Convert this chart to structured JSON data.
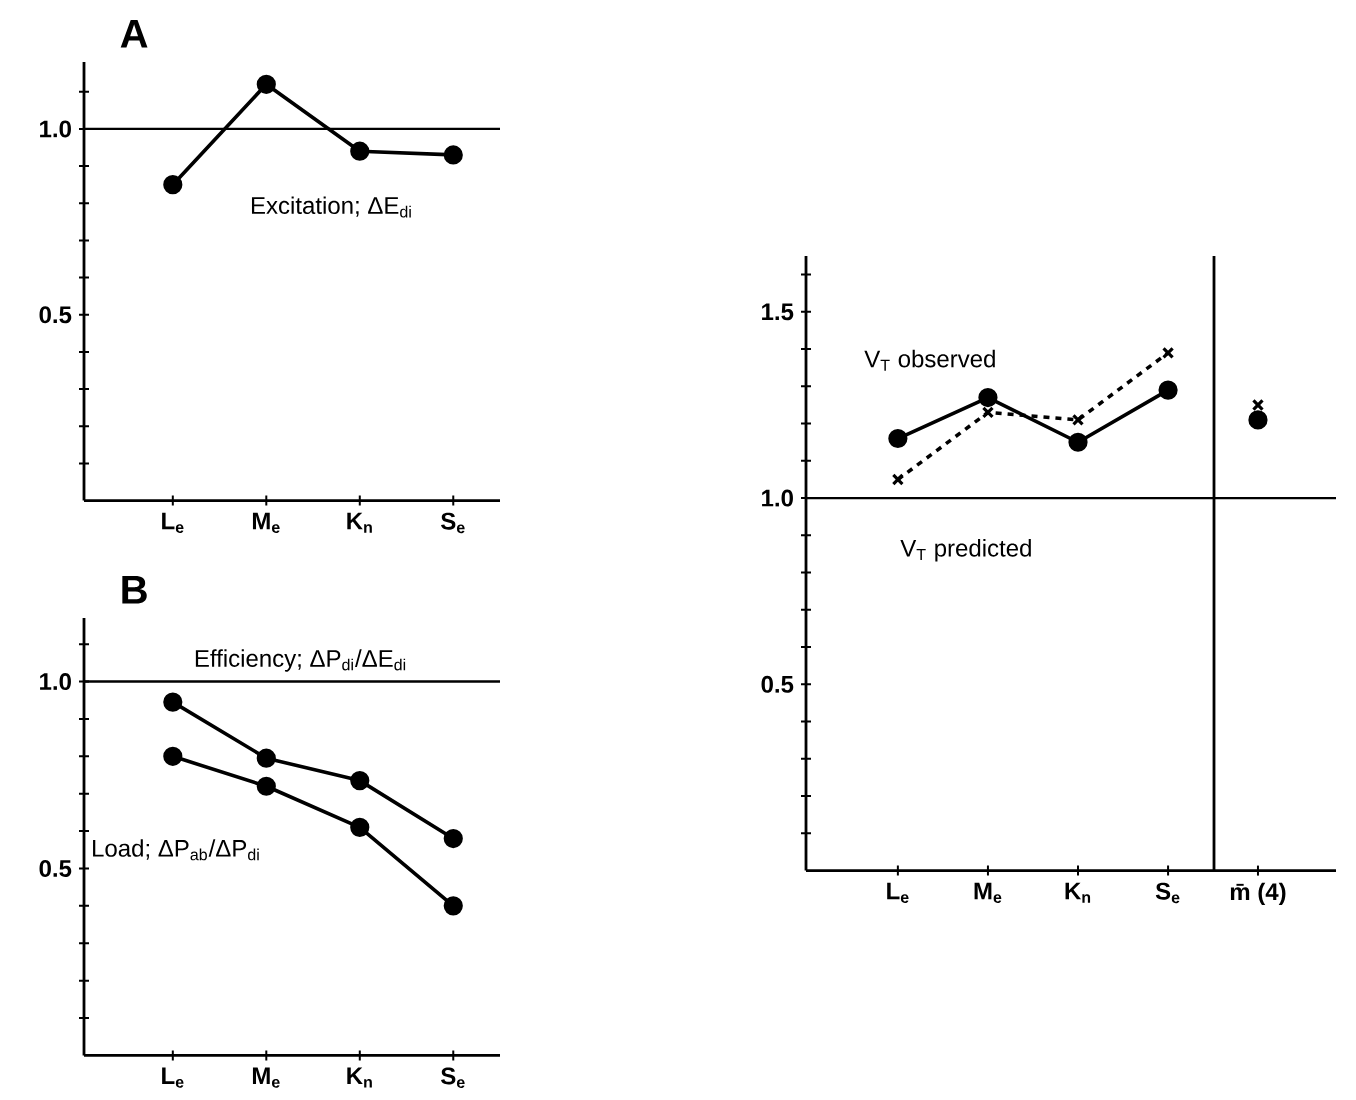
{
  "chart_data": [
    {
      "type": "line",
      "title": "A",
      "categories": [
        "L$_{e}$",
        "M$_{e}$",
        "K$_{n}$",
        "S$_{e}$"
      ],
      "series": [
        {
          "name": "Excitation; ΔE$_{di}$",
          "color": "#000000",
          "values": [
            0.85,
            1.12,
            0.94,
            0.93
          ],
          "marker": "circle",
          "line_style": "solid"
        }
      ],
      "ylim": [
        0,
        1.18
      ],
      "yticks": [
        {
          "value": 0.1,
          "label": null
        },
        {
          "value": 0.2,
          "label": null
        },
        {
          "value": 0.3,
          "label": null
        },
        {
          "value": 0.4,
          "label": null
        },
        {
          "value": 0.5,
          "label": "0.5"
        },
        {
          "value": 0.6,
          "label": null
        },
        {
          "value": 0.7,
          "label": null
        },
        {
          "value": 0.8,
          "label": null
        },
        {
          "value": 0.9,
          "label": null
        },
        {
          "value": 1,
          "label": "1.0"
        },
        {
          "value": 1.1,
          "label": null
        }
      ],
      "ref_lines": [
        {
          "axis": "y",
          "value": 1,
          "color": "#000000"
        }
      ]
    },
    {
      "type": "line",
      "title": "B",
      "categories": [
        "L$_{e}$",
        "M$_{e}$",
        "K$_{n}$",
        "S$_{e}$"
      ],
      "series": [
        {
          "name": "Efficiency; ΔP$_{di}$/ΔE$_{di}$",
          "color": "#000000",
          "values": [
            0.945,
            0.795,
            0.735,
            0.58
          ],
          "marker": "circle",
          "line_style": "solid"
        },
        {
          "name": "Load; ΔP$_{ab}$/ΔP$_{di}$",
          "color": "#000000",
          "values": [
            0.8,
            0.72,
            0.61,
            0.4
          ],
          "marker": "circle",
          "line_style": "solid"
        }
      ],
      "ylim": [
        0,
        1.17
      ],
      "yticks": [
        {
          "value": 0.1,
          "label": null
        },
        {
          "value": 0.2,
          "label": null
        },
        {
          "value": 0.3,
          "label": null
        },
        {
          "value": 0.4,
          "label": null
        },
        {
          "value": 0.5,
          "label": "0.5"
        },
        {
          "value": 0.6,
          "label": null
        },
        {
          "value": 0.7,
          "label": null
        },
        {
          "value": 0.8,
          "label": null
        },
        {
          "value": 0.9,
          "label": null
        },
        {
          "value": 1,
          "label": "1.0"
        },
        {
          "value": 1.1,
          "label": null
        }
      ],
      "ref_lines": [
        {
          "axis": "y",
          "value": 1,
          "color": "#000000"
        }
      ]
    },
    {
      "type": "line",
      "categories": [
        "L$_{e}$",
        "M$_{e}$",
        "K$_{n}$",
        "S$_{e}$"
      ],
      "series": [
        {
          "name": "V$_{T}$ observed",
          "color": "#000000",
          "values": [
            1.16,
            1.27,
            1.15,
            1.29
          ],
          "marker": "circle",
          "line_style": "solid"
        },
        {
          "name": "V$_{T}$ predicted",
          "color": "#000000",
          "values": [
            1.05,
            1.23,
            1.21,
            1.39
          ],
          "marker": "cross",
          "line_style": "dashed"
        }
      ],
      "ylim": [
        0,
        1.65
      ],
      "yticks": [
        {
          "value": 0.1,
          "label": null
        },
        {
          "value": 0.2,
          "label": null
        },
        {
          "value": 0.3,
          "label": null
        },
        {
          "value": 0.4,
          "label": null
        },
        {
          "value": 0.5,
          "label": "0.5"
        },
        {
          "value": 0.6,
          "label": null
        },
        {
          "value": 0.7,
          "label": null
        },
        {
          "value": 0.8,
          "label": null
        },
        {
          "value": 0.9,
          "label": null
        },
        {
          "value": 1,
          "label": "1.0"
        },
        {
          "value": 1.1,
          "label": null
        },
        {
          "value": 1.2,
          "label": null
        },
        {
          "value": 1.3,
          "label": null
        },
        {
          "value": 1.4,
          "label": null
        },
        {
          "value": 1.5,
          "label": "1.5"
        },
        {
          "value": 1.6,
          "label": null
        }
      ],
      "ref_lines": [
        {
          "axis": "y",
          "value": 1,
          "color": "#000000"
        }
      ]
    },
    {
      "type": "scatter",
      "categories": [
        "m̄ (4)"
      ],
      "series": [
        {
          "color": "#000000",
          "values": [
            1.21
          ],
          "marker": "circle"
        },
        {
          "color": "#000000",
          "values": [
            1.25
          ],
          "marker": "cross"
        }
      ],
      "ylim": [
        0,
        1.65
      ],
      "tick_labels": "x",
      "ref_lines": [
        {
          "axis": "y",
          "value": 1,
          "color": "#000000"
        }
      ]
    }
  ]
}
